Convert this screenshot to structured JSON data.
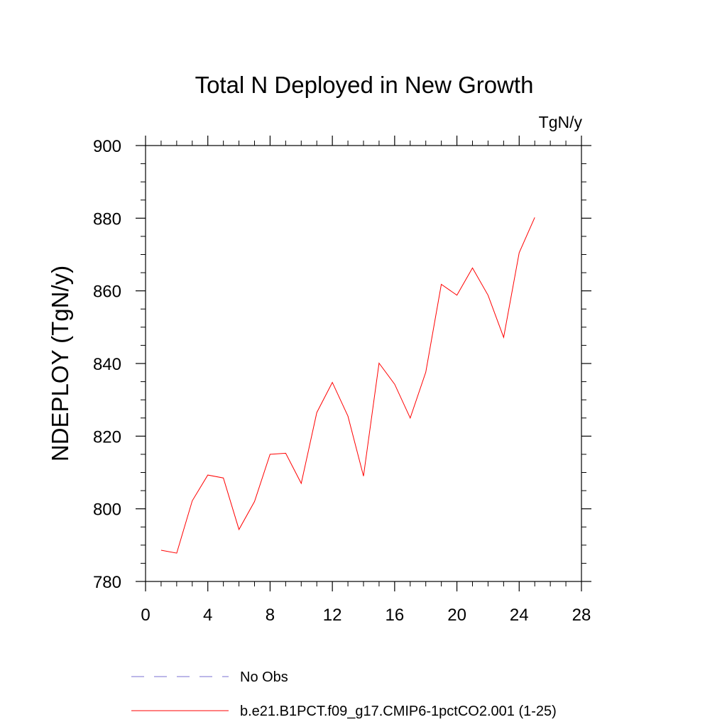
{
  "chart_data": {
    "type": "line",
    "title": "Total N Deployed in New Growth",
    "units_label": "TgN/y",
    "ylabel": "NDEPLOY  (TgN/y)",
    "xlabel": "",
    "xlim": [
      0,
      28
    ],
    "ylim": [
      780,
      900
    ],
    "x_major_ticks": [
      0,
      4,
      8,
      12,
      16,
      20,
      24,
      28
    ],
    "x_minor_step": 1,
    "y_major_ticks": [
      780,
      800,
      820,
      840,
      860,
      880,
      900
    ],
    "y_minor_step": 5,
    "grid": false,
    "legend_position": "bottom",
    "series": [
      {
        "name": "b.e21.B1PCT.f09_g17.CMIP6-1pctCO2.001 (1-25)",
        "color": "#ff0000",
        "dash": "solid",
        "x": [
          1,
          2,
          3,
          4,
          5,
          6,
          7,
          8,
          9,
          10,
          11,
          12,
          13,
          14,
          15,
          16,
          17,
          18,
          19,
          20,
          21,
          22,
          23,
          24,
          25
        ],
        "y": [
          788.6,
          787.8,
          802.2,
          809.3,
          808.5,
          794.3,
          802.0,
          815.0,
          815.3,
          807.0,
          826.5,
          834.8,
          825.5,
          809.0,
          840.1,
          834.3,
          825.0,
          837.6,
          861.8,
          858.8,
          866.3,
          858.8,
          847.2,
          870.5,
          880.2
        ]
      }
    ],
    "legend": [
      {
        "label": "No Obs",
        "color": "#7a6fd0",
        "dash": "dashed"
      },
      {
        "label": "b.e21.B1PCT.f09_g17.CMIP6-1pctCO2.001 (1-25)",
        "color": "#ff0000",
        "dash": "solid"
      }
    ]
  }
}
